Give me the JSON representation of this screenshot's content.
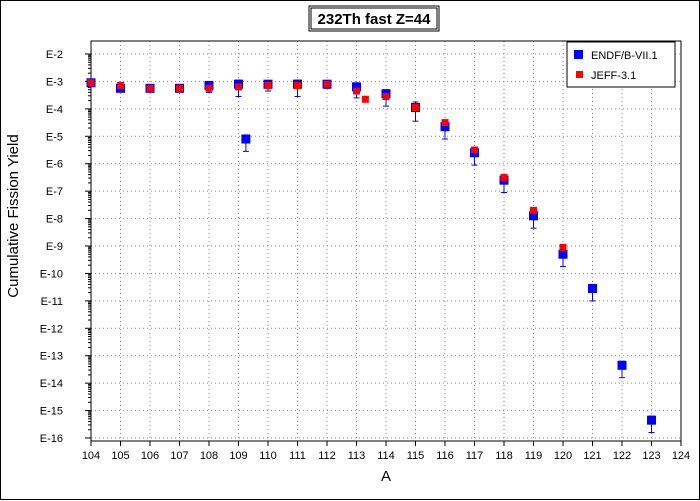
{
  "chart_data": {
    "type": "scatter",
    "title": "232Th fast Z=44",
    "xlabel": "A",
    "ylabel": "Cumulative Fission Yield",
    "xlim": [
      104,
      124
    ],
    "xticks": [
      104,
      105,
      106,
      107,
      108,
      109,
      110,
      111,
      112,
      113,
      114,
      115,
      116,
      117,
      118,
      119,
      120,
      121,
      122,
      123,
      124
    ],
    "y_scale": "log",
    "ylim_exponent": [
      -16,
      -2
    ],
    "ytick_labels": [
      "E-2",
      "E-3",
      "E-4",
      "E-5",
      "E-6",
      "E-7",
      "E-8",
      "E-9",
      "E-10",
      "E-11",
      "E-12",
      "E-13",
      "E-14",
      "E-15",
      "E-16"
    ],
    "grid": true,
    "legend_position": "top-right",
    "series": [
      {
        "name": "ENDF/B-VII.1",
        "color": "#0000ff",
        "marker": "square",
        "points": [
          {
            "x": 104,
            "log10y": -3.05,
            "err_lo": 0.05,
            "err_hi": 0.05
          },
          {
            "x": 105,
            "log10y": -3.25,
            "err_lo": 0.1,
            "err_hi": 0.1
          },
          {
            "x": 106,
            "log10y": -3.25,
            "err_lo": 0.08,
            "err_hi": 0.08
          },
          {
            "x": 107,
            "log10y": -3.25,
            "err_lo": 0.08,
            "err_hi": 0.08
          },
          {
            "x": 108,
            "log10y": -3.15,
            "err_lo": 0.25,
            "err_hi": 0.15
          },
          {
            "x": 109,
            "log10y": -3.1,
            "err_lo": 0.45,
            "err_hi": 0.15
          },
          {
            "x": 109.25,
            "log10y": -5.1,
            "err_lo": 0.45,
            "err_hi": 0.15
          },
          {
            "x": 110,
            "log10y": -3.1,
            "err_lo": 0.25,
            "err_hi": 0.1
          },
          {
            "x": 111,
            "log10y": -3.1,
            "err_lo": 0.45,
            "err_hi": 0.15
          },
          {
            "x": 112,
            "log10y": -3.1,
            "err_lo": 0.15,
            "err_hi": 0.1
          },
          {
            "x": 113,
            "log10y": -3.2,
            "err_lo": 0.4,
            "err_hi": 0.15
          },
          {
            "x": 114,
            "log10y": -3.45,
            "err_lo": 0.45,
            "err_hi": 0.15
          },
          {
            "x": 115,
            "log10y": -3.95,
            "err_lo": 0.5,
            "err_hi": 0.2
          },
          {
            "x": 116,
            "log10y": -4.65,
            "err_lo": 0.45,
            "err_hi": 0.15
          },
          {
            "x": 117,
            "log10y": -5.6,
            "err_lo": 0.45,
            "err_hi": 0.15
          },
          {
            "x": 118,
            "log10y": -6.6,
            "err_lo": 0.45,
            "err_hi": 0.15
          },
          {
            "x": 119,
            "log10y": -7.9,
            "err_lo": 0.45,
            "err_hi": 0.15
          },
          {
            "x": 120,
            "log10y": -9.3,
            "err_lo": 0.45,
            "err_hi": 0.15
          },
          {
            "x": 121,
            "log10y": -10.55,
            "err_lo": 0.45,
            "err_hi": 0.15
          },
          {
            "x": 122,
            "log10y": -13.35,
            "err_lo": 0.45,
            "err_hi": 0.15
          },
          {
            "x": 123,
            "log10y": -15.35,
            "err_lo": 0.45,
            "err_hi": 0.15
          }
        ]
      },
      {
        "name": "JEFF-3.1",
        "color": "#ff0000",
        "marker": "square",
        "points": [
          {
            "x": 104,
            "log10y": -3.05
          },
          {
            "x": 105,
            "log10y": -3.15
          },
          {
            "x": 106,
            "log10y": -3.25
          },
          {
            "x": 107,
            "log10y": -3.25
          },
          {
            "x": 108,
            "log10y": -3.25
          },
          {
            "x": 109,
            "log10y": -3.2
          },
          {
            "x": 110,
            "log10y": -3.15
          },
          {
            "x": 111,
            "log10y": -3.15
          },
          {
            "x": 112,
            "log10y": -3.1
          },
          {
            "x": 113,
            "log10y": -3.35
          },
          {
            "x": 113.3,
            "log10y": -3.65
          },
          {
            "x": 114,
            "log10y": -3.55
          },
          {
            "x": 115,
            "log10y": -3.95
          },
          {
            "x": 116,
            "log10y": -4.5
          },
          {
            "x": 117,
            "log10y": -5.5
          },
          {
            "x": 118,
            "log10y": -6.5
          },
          {
            "x": 119,
            "log10y": -7.7
          },
          {
            "x": 120,
            "log10y": -9.05
          }
        ]
      }
    ]
  }
}
